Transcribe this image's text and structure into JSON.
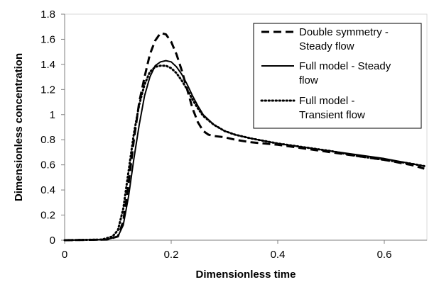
{
  "chart_data": {
    "type": "line",
    "title": "",
    "xlabel": "Dimensionless time",
    "ylabel": "Dimensionless concentration",
    "xlim": [
      0,
      0.68
    ],
    "ylim": [
      0,
      1.8
    ],
    "xticks": [
      0,
      0.2,
      0.4,
      0.6
    ],
    "xtick_labels": [
      "0",
      "0.2",
      "0.4",
      "0.6"
    ],
    "yticks": [
      0,
      0.2,
      0.4,
      0.6,
      0.8,
      1,
      1.2,
      1.4,
      1.6,
      1.8
    ],
    "ytick_labels": [
      "0",
      "0.2",
      "0.4",
      "0.6",
      "0.8",
      "1",
      "1.2",
      "1.4",
      "1.6",
      "1.8"
    ],
    "grid": false,
    "legend_position": "top-right",
    "series": [
      {
        "name_lines": [
          "Double symmetry -",
          "Steady flow"
        ],
        "style": "dashed",
        "color": "#000000",
        "x": [
          0,
          0.08,
          0.1,
          0.11,
          0.12,
          0.13,
          0.14,
          0.15,
          0.16,
          0.17,
          0.18,
          0.19,
          0.2,
          0.21,
          0.22,
          0.23,
          0.24,
          0.25,
          0.26,
          0.27,
          0.28,
          0.3,
          0.32,
          0.35,
          0.4,
          0.45,
          0.5,
          0.55,
          0.6,
          0.65,
          0.675
        ],
        "y": [
          0,
          0.005,
          0.03,
          0.15,
          0.45,
          0.8,
          1.1,
          1.3,
          1.48,
          1.59,
          1.65,
          1.64,
          1.58,
          1.48,
          1.35,
          1.2,
          1.05,
          0.94,
          0.87,
          0.84,
          0.83,
          0.82,
          0.8,
          0.78,
          0.76,
          0.73,
          0.7,
          0.67,
          0.64,
          0.6,
          0.57
        ]
      },
      {
        "name_lines": [
          "Full model - Steady",
          "flow"
        ],
        "style": "solid",
        "color": "#000000",
        "x": [
          0,
          0.08,
          0.1,
          0.11,
          0.12,
          0.13,
          0.14,
          0.15,
          0.16,
          0.17,
          0.18,
          0.19,
          0.2,
          0.21,
          0.22,
          0.23,
          0.24,
          0.25,
          0.26,
          0.28,
          0.3,
          0.32,
          0.35,
          0.4,
          0.45,
          0.5,
          0.55,
          0.6,
          0.65,
          0.675
        ],
        "y": [
          0,
          0.005,
          0.03,
          0.12,
          0.35,
          0.65,
          0.92,
          1.15,
          1.3,
          1.39,
          1.42,
          1.43,
          1.42,
          1.38,
          1.32,
          1.24,
          1.15,
          1.07,
          1.0,
          0.92,
          0.87,
          0.84,
          0.81,
          0.77,
          0.74,
          0.71,
          0.68,
          0.65,
          0.61,
          0.59
        ]
      },
      {
        "name_lines": [
          "Full model -",
          "Transient flow"
        ],
        "style": "dotted",
        "color": "#000000",
        "x": [
          0,
          0.07,
          0.09,
          0.1,
          0.11,
          0.12,
          0.13,
          0.14,
          0.15,
          0.16,
          0.17,
          0.18,
          0.19,
          0.2,
          0.21,
          0.22,
          0.23,
          0.24,
          0.25,
          0.26,
          0.28,
          0.3,
          0.32,
          0.35,
          0.4,
          0.45,
          0.5,
          0.55,
          0.6,
          0.65,
          0.675
        ],
        "y": [
          0,
          0.005,
          0.03,
          0.08,
          0.25,
          0.55,
          0.85,
          1.08,
          1.24,
          1.34,
          1.38,
          1.39,
          1.39,
          1.37,
          1.33,
          1.27,
          1.2,
          1.12,
          1.05,
          0.99,
          0.92,
          0.87,
          0.84,
          0.81,
          0.77,
          0.74,
          0.71,
          0.67,
          0.64,
          0.61,
          0.59
        ]
      }
    ]
  }
}
